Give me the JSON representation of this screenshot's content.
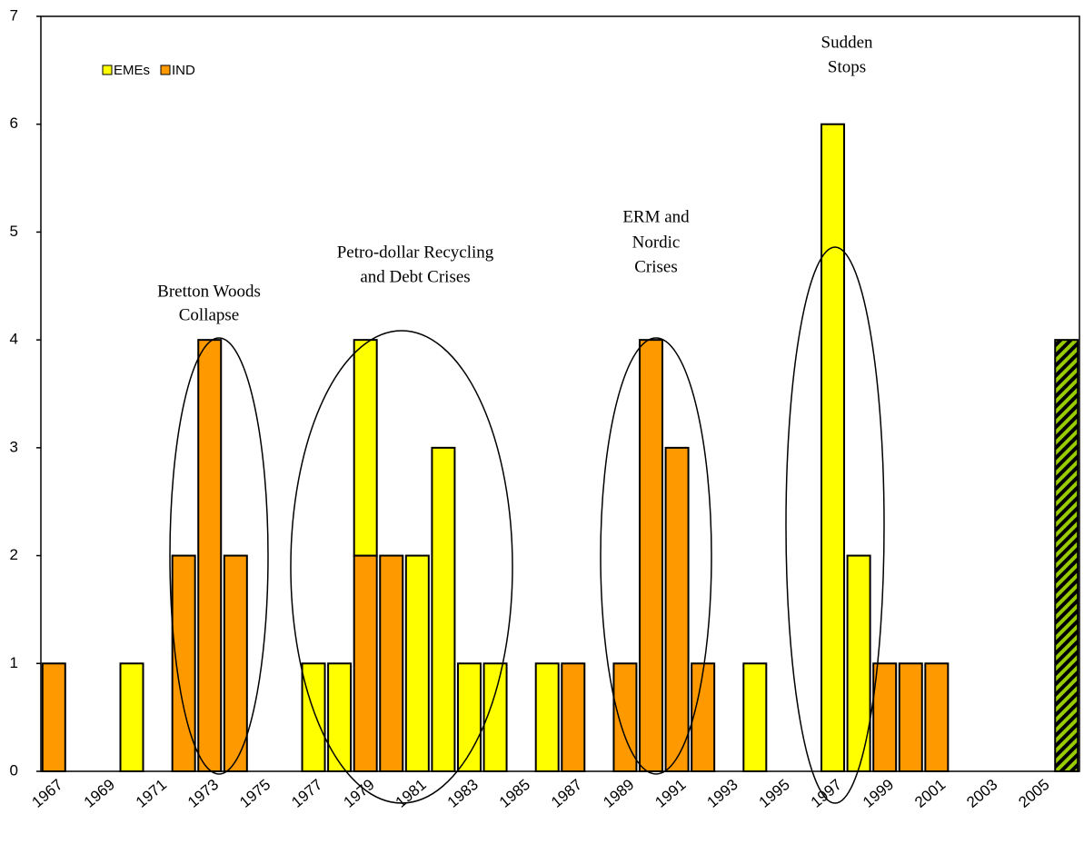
{
  "chart_data": {
    "type": "bar",
    "stacked": true,
    "categories": [
      "1967",
      null,
      "1969",
      null,
      "1971",
      null,
      "1973",
      null,
      "1975",
      null,
      "1977",
      null,
      "1979",
      null,
      "1981",
      null,
      "1983",
      null,
      "1985",
      null,
      "1987",
      null,
      "1989",
      null,
      "1991",
      null,
      "1993",
      null,
      "1995",
      null,
      "1997",
      null,
      "1999",
      null,
      "2001",
      null,
      "2003",
      null,
      "2005",
      null
    ],
    "series": [
      {
        "name": "EMEs",
        "color": "#ffff00",
        "values": [
          0,
          0,
          0,
          1,
          0,
          0,
          0,
          0,
          0,
          0,
          1,
          1,
          2,
          0,
          2,
          3,
          1,
          1,
          0,
          1,
          0,
          0,
          0,
          0,
          0,
          0,
          0,
          1,
          0,
          0,
          6,
          2,
          0,
          0,
          0,
          0,
          0,
          0,
          0,
          0
        ]
      },
      {
        "name": "IND",
        "color": "#ff9900",
        "values": [
          1,
          0,
          0,
          0,
          0,
          2,
          4,
          2,
          0,
          0,
          0,
          0,
          2,
          2,
          0,
          0,
          0,
          0,
          0,
          0,
          1,
          0,
          1,
          4,
          3,
          1,
          0,
          0,
          0,
          0,
          0,
          0,
          1,
          1,
          1,
          0,
          0,
          0,
          0,
          0
        ]
      },
      {
        "color": "#99cc00",
        "pattern": "hatch",
        "values": [
          0,
          0,
          0,
          0,
          0,
          0,
          0,
          0,
          0,
          0,
          0,
          0,
          0,
          0,
          0,
          0,
          0,
          0,
          0,
          0,
          0,
          0,
          0,
          0,
          0,
          0,
          0,
          0,
          0,
          0,
          0,
          0,
          0,
          0,
          0,
          0,
          0,
          0,
          0,
          4
        ]
      }
    ],
    "ylim": [
      0,
      7
    ],
    "yticks": [
      0,
      1,
      2,
      3,
      4,
      5,
      6,
      7
    ],
    "legend": "top-left",
    "annotations": [
      [
        "Bretton Woods",
        "Collapse"
      ],
      [
        "Petro-dollar Recycling",
        "and Debt Crises"
      ],
      [
        "ERM and",
        "Nordic",
        "Crises"
      ],
      [
        "Sudden",
        "Stops"
      ]
    ]
  }
}
